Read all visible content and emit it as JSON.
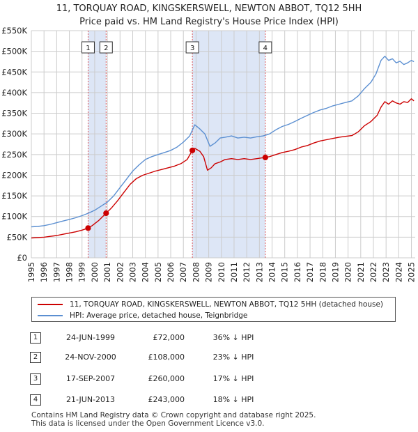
{
  "title_line1": "11, TORQUAY ROAD, KINGSKERSWELL, NEWTON ABBOT, TQ12 5HH",
  "title_line2": "Price paid vs. HM Land Registry's House Price Index (HPI)",
  "colors": {
    "property": "#cc0000",
    "hpi": "#5b8fd1",
    "shade": "#dde6f6",
    "grid": "#cccccc"
  },
  "chart_data": {
    "type": "line",
    "title": "Price paid vs. HM Land Registry's House Price Index (HPI)",
    "xlabel": "",
    "ylabel": "",
    "xlim": [
      1995,
      2025.3
    ],
    "ylim": [
      0,
      550000
    ],
    "y_ticks": [
      {
        "value": 0,
        "label": "£0"
      },
      {
        "value": 50000,
        "label": "£50K"
      },
      {
        "value": 100000,
        "label": "£100K"
      },
      {
        "value": 150000,
        "label": "£150K"
      },
      {
        "value": 200000,
        "label": "£200K"
      },
      {
        "value": 250000,
        "label": "£250K"
      },
      {
        "value": 300000,
        "label": "£300K"
      },
      {
        "value": 350000,
        "label": "£350K"
      },
      {
        "value": 400000,
        "label": "£400K"
      },
      {
        "value": 450000,
        "label": "£450K"
      },
      {
        "value": 500000,
        "label": "£500K"
      },
      {
        "value": 550000,
        "label": "£550K"
      }
    ],
    "x_ticks": [
      "1995",
      "1996",
      "1997",
      "1998",
      "1999",
      "2000",
      "2001",
      "2002",
      "2003",
      "2004",
      "2005",
      "2006",
      "2007",
      "2008",
      "2009",
      "2010",
      "2011",
      "2012",
      "2013",
      "2014",
      "2015",
      "2016",
      "2017",
      "2018",
      "2019",
      "2020",
      "2021",
      "2022",
      "2023",
      "2024",
      "2025"
    ],
    "grid": true,
    "shaded_periods": [
      [
        1999.48,
        2000.9
      ],
      [
        2007.71,
        2013.47
      ]
    ],
    "series": [
      {
        "name": "11, TORQUAY ROAD, KINGSKERSWELL, NEWTON ABBOT, TQ12 5HH (detached house)",
        "color_key": "property",
        "x": [
          1995.0,
          1995.5,
          1996.0,
          1996.5,
          1997.0,
          1997.5,
          1998.0,
          1998.5,
          1999.0,
          1999.48,
          1999.8,
          2000.3,
          2000.9,
          2001.3,
          2001.8,
          2002.3,
          2002.8,
          2003.3,
          2003.8,
          2004.3,
          2004.8,
          2005.3,
          2005.8,
          2006.3,
          2006.8,
          2007.3,
          2007.71,
          2007.9,
          2008.3,
          2008.6,
          2008.9,
          2009.2,
          2009.5,
          2009.9,
          2010.3,
          2010.8,
          2011.3,
          2011.8,
          2012.3,
          2012.8,
          2013.2,
          2013.47,
          2013.8,
          2014.3,
          2014.8,
          2015.3,
          2015.8,
          2016.3,
          2016.8,
          2017.3,
          2017.8,
          2018.3,
          2018.8,
          2019.3,
          2019.8,
          2020.3,
          2020.8,
          2021.3,
          2021.8,
          2022.3,
          2022.6,
          2022.9,
          2023.2,
          2023.5,
          2023.8,
          2024.1,
          2024.4,
          2024.7,
          2025.0,
          2025.2
        ],
        "values": [
          48000,
          49000,
          50000,
          52000,
          54000,
          57000,
          60000,
          63000,
          67000,
          72000,
          78000,
          90000,
          108000,
          120000,
          138000,
          158000,
          178000,
          192000,
          200000,
          205000,
          210000,
          214000,
          218000,
          222000,
          228000,
          238000,
          260000,
          265000,
          258000,
          245000,
          212000,
          218000,
          228000,
          232000,
          238000,
          240000,
          238000,
          240000,
          238000,
          240000,
          242000,
          243000,
          245000,
          250000,
          255000,
          258000,
          262000,
          268000,
          272000,
          278000,
          283000,
          286000,
          289000,
          292000,
          294000,
          296000,
          305000,
          320000,
          330000,
          345000,
          365000,
          378000,
          372000,
          380000,
          375000,
          372000,
          378000,
          376000,
          385000,
          380000
        ]
      },
      {
        "name": "HPI: Average price, detached house, Teignbridge",
        "color_key": "hpi",
        "x": [
          1995.0,
          1995.5,
          1996.0,
          1996.5,
          1997.0,
          1997.5,
          1998.0,
          1998.5,
          1999.0,
          1999.5,
          2000.0,
          2000.5,
          2001.0,
          2001.5,
          2002.0,
          2002.5,
          2003.0,
          2003.5,
          2004.0,
          2004.5,
          2005.0,
          2005.5,
          2006.0,
          2006.5,
          2007.0,
          2007.5,
          2007.9,
          2008.3,
          2008.7,
          2009.1,
          2009.5,
          2009.9,
          2010.3,
          2010.8,
          2011.3,
          2011.8,
          2012.3,
          2012.8,
          2013.3,
          2013.8,
          2014.3,
          2014.8,
          2015.3,
          2015.8,
          2016.3,
          2016.8,
          2017.3,
          2017.8,
          2018.3,
          2018.8,
          2019.3,
          2019.8,
          2020.3,
          2020.8,
          2021.3,
          2021.8,
          2022.2,
          2022.6,
          2022.9,
          2023.2,
          2023.5,
          2023.8,
          2024.1,
          2024.4,
          2024.7,
          2025.0,
          2025.2
        ],
        "values": [
          75000,
          76000,
          78000,
          81000,
          85000,
          89000,
          93000,
          97000,
          102000,
          108000,
          115000,
          125000,
          135000,
          150000,
          170000,
          190000,
          210000,
          225000,
          238000,
          245000,
          250000,
          255000,
          260000,
          268000,
          280000,
          295000,
          322000,
          312000,
          300000,
          270000,
          278000,
          290000,
          292000,
          295000,
          290000,
          292000,
          290000,
          293000,
          295000,
          300000,
          310000,
          318000,
          323000,
          330000,
          338000,
          345000,
          352000,
          358000,
          362000,
          368000,
          372000,
          376000,
          380000,
          392000,
          410000,
          425000,
          445000,
          478000,
          488000,
          478000,
          482000,
          472000,
          476000,
          468000,
          472000,
          478000,
          475000
        ]
      }
    ],
    "markers": [
      {
        "label": "1",
        "x": 1999.48,
        "value": 72000
      },
      {
        "label": "2",
        "x": 2000.9,
        "value": 108000
      },
      {
        "label": "3",
        "x": 2007.71,
        "value": 260000
      },
      {
        "label": "4",
        "x": 2013.47,
        "value": 243000
      }
    ]
  },
  "legend": {
    "property_label": "11, TORQUAY ROAD, KINGSKERSWELL, NEWTON ABBOT, TQ12 5HH (detached house)",
    "hpi_label": "HPI: Average price, detached house, Teignbridge"
  },
  "transactions": [
    {
      "num": "1",
      "date": "24-JUN-1999",
      "price": "£72,000",
      "hpi": "36% ↓ HPI"
    },
    {
      "num": "2",
      "date": "24-NOV-2000",
      "price": "£108,000",
      "hpi": "23% ↓ HPI"
    },
    {
      "num": "3",
      "date": "17-SEP-2007",
      "price": "£260,000",
      "hpi": "17% ↓ HPI"
    },
    {
      "num": "4",
      "date": "21-JUN-2013",
      "price": "£243,000",
      "hpi": "18% ↓ HPI"
    }
  ],
  "footer_line1": "Contains HM Land Registry data © Crown copyright and database right 2025.",
  "footer_line2": "This data is licensed under the Open Government Licence v3.0."
}
